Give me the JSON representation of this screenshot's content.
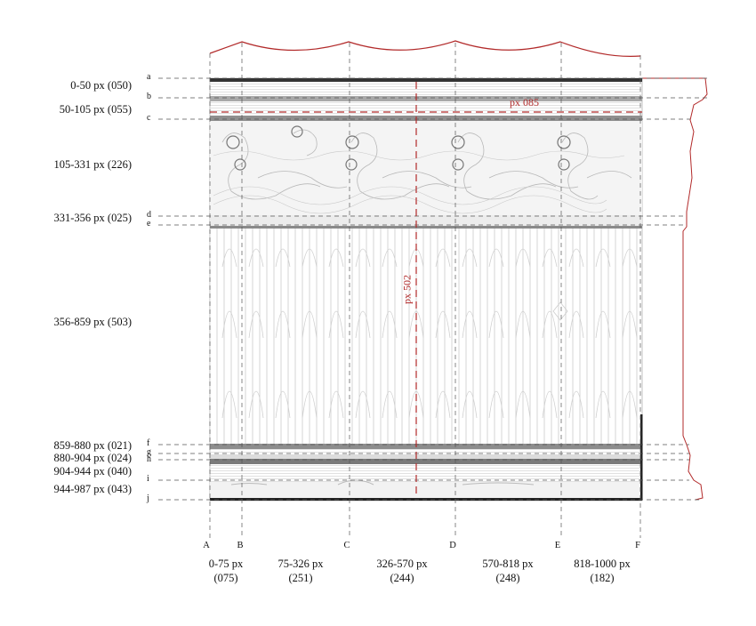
{
  "rows": [
    {
      "letter": "a",
      "label": "0-50 px (050)"
    },
    {
      "letter": "b",
      "label": "50-105 px (055)"
    },
    {
      "letter": "c",
      "label": ""
    },
    {
      "letter": "",
      "label": "105-331 px (226)"
    },
    {
      "letter": "d",
      "label": "331-356 px (025)"
    },
    {
      "letter": "e",
      "label": ""
    },
    {
      "letter": "",
      "label": "356-859 px (503)"
    },
    {
      "letter": "f",
      "label": "859-880 px (021)"
    },
    {
      "letter": "g",
      "label": "880-904 px (024)"
    },
    {
      "letter": "h",
      "label": "904-944 px (040)"
    },
    {
      "letter": "i",
      "label": ""
    },
    {
      "letter": "j",
      "label": "944-987 px (043)"
    }
  ],
  "columns": [
    {
      "letter": "A",
      "range": "0-75 px",
      "width": "(075)"
    },
    {
      "letter": "B",
      "range": "75-326 px",
      "width": "(251)"
    },
    {
      "letter": "C",
      "range": "326-570 px",
      "width": "(244)"
    },
    {
      "letter": "D",
      "range": "570-818 px",
      "width": "(248)"
    },
    {
      "letter": "E",
      "range": "818-1000 px",
      "width": "(182)"
    },
    {
      "letter": "F",
      "range": "",
      "width": ""
    }
  ],
  "annotations": {
    "horizontal": "px 085",
    "vertical": "px 502"
  },
  "colors": {
    "annotation_red": "#b22a2a",
    "guide_gray": "#666666",
    "relief": "#cfcfcf"
  }
}
